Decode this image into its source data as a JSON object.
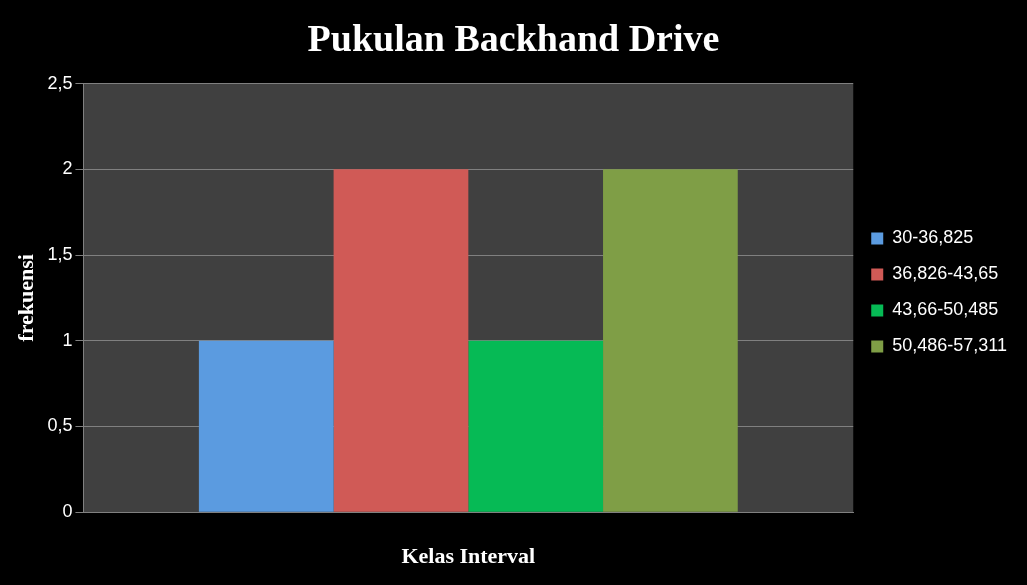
{
  "chart_data": {
    "type": "bar",
    "title": "Pukulan Backhand Drive",
    "xlabel": "Kelas Interval",
    "ylabel": "frekuensi",
    "categories": [
      null
    ],
    "series": [
      {
        "name": "30-36,825",
        "color": "#5b9be0",
        "values": [
          1
        ]
      },
      {
        "name": "36,826-43,65",
        "color": "#d05a56",
        "values": [
          2
        ]
      },
      {
        "name": "43,66-50,485",
        "color": "#06ba55",
        "values": [
          1
        ]
      },
      {
        "name": "50,486-57,311",
        "color": "#7f9e46",
        "values": [
          2
        ]
      }
    ],
    "ylim": [
      0,
      2.5
    ],
    "yticks": [
      0,
      {
        "value": 0.5,
        "label": "0,5"
      },
      1,
      {
        "value": 1.5,
        "label": "1,5"
      },
      2,
      {
        "value": 2.5,
        "label": "2,5"
      }
    ],
    "grid": "y",
    "legend": "right"
  }
}
